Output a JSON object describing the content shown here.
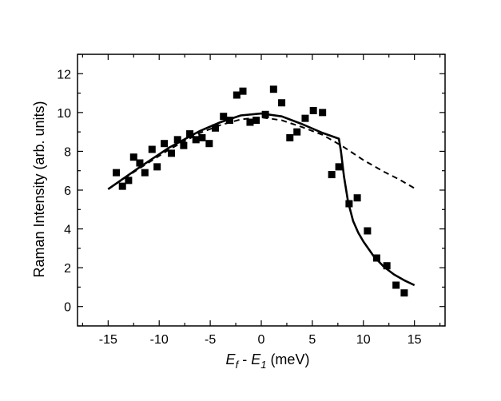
{
  "chart_data": {
    "type": "scatter",
    "xlabel": {
      "main1": "E",
      "sub1": "f",
      "mid": " - ",
      "main2": "E",
      "sub2": "1",
      "unit": "  (meV)"
    },
    "ylabel": "Raman Intensity (arb. units)",
    "xlim": [
      -18,
      18
    ],
    "ylim": [
      -1,
      13
    ],
    "xticks": [
      -15,
      -10,
      -5,
      0,
      5,
      10,
      15
    ],
    "yticks": [
      0,
      2,
      4,
      6,
      8,
      10,
      12
    ],
    "grid": false,
    "series": [
      {
        "type": "scatter",
        "marker": "square",
        "color": "#000000",
        "points": [
          [
            -14.2,
            6.9
          ],
          [
            -13.6,
            6.2
          ],
          [
            -13.0,
            6.5
          ],
          [
            -12.5,
            7.7
          ],
          [
            -11.9,
            7.4
          ],
          [
            -11.4,
            6.9
          ],
          [
            -10.7,
            8.1
          ],
          [
            -10.2,
            7.2
          ],
          [
            -9.5,
            8.4
          ],
          [
            -8.8,
            7.9
          ],
          [
            -8.2,
            8.6
          ],
          [
            -7.6,
            8.3
          ],
          [
            -7.0,
            8.9
          ],
          [
            -6.4,
            8.6
          ],
          [
            -5.8,
            8.7
          ],
          [
            -5.1,
            8.4
          ],
          [
            -4.5,
            9.2
          ],
          [
            -3.7,
            9.8
          ],
          [
            -3.1,
            9.6
          ],
          [
            -2.4,
            10.9
          ],
          [
            -1.8,
            11.1
          ],
          [
            -1.1,
            9.5
          ],
          [
            -0.5,
            9.6
          ],
          [
            0.4,
            9.9
          ],
          [
            1.2,
            11.2
          ],
          [
            2.0,
            10.5
          ],
          [
            2.8,
            8.7
          ],
          [
            3.5,
            9.0
          ],
          [
            4.3,
            9.7
          ],
          [
            5.1,
            10.1
          ],
          [
            6.0,
            10.0
          ],
          [
            6.9,
            6.8
          ],
          [
            7.6,
            7.2
          ],
          [
            8.6,
            5.3
          ],
          [
            9.4,
            5.6
          ],
          [
            10.4,
            3.9
          ],
          [
            11.3,
            2.5
          ],
          [
            12.3,
            2.1
          ],
          [
            13.2,
            1.1
          ],
          [
            14.0,
            0.7
          ]
        ]
      },
      {
        "type": "line",
        "style": "solid",
        "color": "#000000",
        "points": [
          [
            -15,
            6.05
          ],
          [
            -12,
            7.15
          ],
          [
            -9,
            8.2
          ],
          [
            -6,
            9.05
          ],
          [
            -4,
            9.5
          ],
          [
            -2,
            9.85
          ],
          [
            0,
            9.95
          ],
          [
            2,
            9.8
          ],
          [
            4,
            9.4
          ],
          [
            6,
            8.95
          ],
          [
            7.6,
            8.65
          ],
          [
            7.8,
            8.0
          ],
          [
            8.1,
            6.7
          ],
          [
            8.5,
            5.4
          ],
          [
            9.0,
            4.4
          ],
          [
            9.5,
            3.8
          ],
          [
            10.0,
            3.35
          ],
          [
            11.0,
            2.6
          ],
          [
            12.0,
            2.05
          ],
          [
            13.0,
            1.65
          ],
          [
            14.0,
            1.35
          ],
          [
            15.0,
            1.1
          ]
        ]
      },
      {
        "type": "line",
        "style": "dashed",
        "color": "#000000",
        "points": [
          [
            -15,
            6.05
          ],
          [
            -12,
            7.1
          ],
          [
            -9,
            8.1
          ],
          [
            -6,
            8.95
          ],
          [
            -4,
            9.35
          ],
          [
            -2,
            9.65
          ],
          [
            0,
            9.75
          ],
          [
            2,
            9.6
          ],
          [
            4,
            9.25
          ],
          [
            6,
            8.85
          ],
          [
            8,
            8.25
          ],
          [
            10,
            7.55
          ],
          [
            12,
            6.95
          ],
          [
            13.5,
            6.55
          ],
          [
            15,
            6.1
          ]
        ]
      }
    ]
  }
}
